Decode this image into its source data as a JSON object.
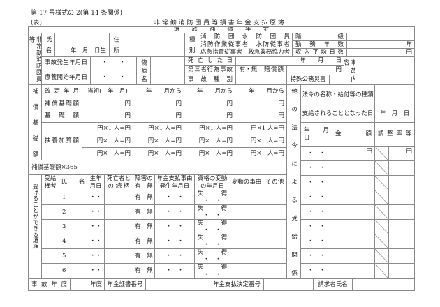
{
  "form_number": "第 17 号様式の 2(第 14 条関係)",
  "side": "(表)",
  "title": "非 常 勤 消 防 団 員 等 損 害 年 金 支 払 原 簿",
  "section_header": "遺　　族　　補　　償　　年　　金",
  "deceased": {
    "label": "非常勤消防団員等",
    "name_label": "氏名",
    "birth": "年　月　日生",
    "address_label": "住所",
    "type_label": "種別",
    "types": [
      "消　防　団　水　防　団　員",
      "消防作業従事者　水防従事者",
      "応急措置従事者　救急業務協力者"
    ],
    "rank_label": "階級",
    "service_years_label": "勤務年数",
    "service_years_unit": "年",
    "avg_income_label": "収入平均日数",
    "avg_income_unit": "円",
    "accident_date_label": "事故発生年月日",
    "accident_date_value": "・　　・",
    "treatment_start_label": "療養開始年月日",
    "treatment_start_value": "・　　・",
    "injury_label": "傷病名",
    "death_date_label": "死亡した日",
    "death_date_value": "年　　月　　日",
    "third_party_label": "第三者行為事故",
    "third_party_value": "有・無",
    "compensation_label": "賠償額",
    "compensation_unit": "円",
    "accident_type_label": "事故種別",
    "special_label": "特殊公務災害",
    "accident_content_label": "事故内容"
  },
  "compensation": {
    "side_label": "補償基礎額",
    "revision_label": "改定年月",
    "periods": [
      "当初(　年　月)",
      "年　　月から",
      "年　　月から",
      "年　　月から"
    ],
    "base_label": "補償基礎額",
    "base_values": [
      "円",
      "円",
      "円",
      "円"
    ],
    "basic_label": "基礎額",
    "basic_values": [
      "円",
      "円",
      "円",
      "円"
    ],
    "dependent_label": "扶養加算額",
    "dependent_rows": [
      [
        "円×1 人=円",
        "円×1 人=円",
        "円×1 人=円",
        "円×1 人=円"
      ],
      [
        "円×　人=円",
        "円×　人=円",
        "円×　人=円",
        "円×　人=円"
      ],
      [
        "円×　人=円",
        "円×　人=円",
        "円×　人=円",
        "円×　人=円"
      ]
    ],
    "annual_label": "補償基礎額×365"
  },
  "other_laws": {
    "side_label": "他の法令による受給関係",
    "law_name_label": "法令の名称・給付等の種類",
    "payment_start_label": "支給されることとなった日",
    "payment_start_value": "年　月　日",
    "date_header": "年　月　日",
    "amount_header": "金　　　額",
    "adjustment_header": "調整率等",
    "rows": [
      {
        "date": "・　・",
        "amount": "円",
        "rate": "円"
      },
      {
        "date": "・　・",
        "amount": "",
        "rate": ""
      },
      {
        "date": "・　・",
        "amount": "",
        "rate": ""
      },
      {
        "date": "・　・",
        "amount": "",
        "rate": ""
      },
      {
        "date": "・　・",
        "amount": "",
        "rate": ""
      },
      {
        "date": "・　・",
        "amount": "",
        "rate": ""
      },
      {
        "date": "・　・",
        "amount": "",
        "rate": ""
      },
      {
        "date": "・　・",
        "amount": "",
        "rate": ""
      },
      {
        "date": "・　・",
        "amount": "",
        "rate": ""
      }
    ]
  },
  "survivors": {
    "side_label": "受けることができる遺族",
    "headers": [
      "受給\n権者",
      "氏　　名",
      "生年\n月日",
      "死亡者と\nの 続 柄",
      "障害の\n有　無",
      "年金支払事由\n発生年月日",
      "資格の変動\nの年月日",
      "変動の事由",
      "その他"
    ],
    "rows": [
      {
        "no": "1",
        "birth": "・・",
        "disability": "有　無",
        "event_date": "・　・",
        "status": "失　　　得\n・　・"
      },
      {
        "no": "2",
        "birth": "・・",
        "disability": "有　無",
        "event_date": "・　・",
        "status": "失　　　得\n・　・"
      },
      {
        "no": "3",
        "birth": "・・",
        "disability": "有　無",
        "event_date": "・　・",
        "status": "失　　　得\n・　・"
      },
      {
        "no": "4",
        "birth": "・・",
        "disability": "有　無",
        "event_date": "・　・",
        "status": "失　　　得\n・　・"
      },
      {
        "no": "5",
        "birth": "・・",
        "disability": "有　無",
        "event_date": "・　・",
        "status": "失　　　得\n・　・"
      },
      {
        "no": "6",
        "birth": "・・",
        "disability": "有　無",
        "event_date": "・　・",
        "status": "失　　　得\n・　・"
      }
    ]
  },
  "footer": {
    "accident_year_label": "事故年度",
    "year_unit": "年度",
    "certificate_label": "年金証書番号",
    "decision_label": "年金支払決定番号",
    "claimant_label": "請求者氏名"
  }
}
